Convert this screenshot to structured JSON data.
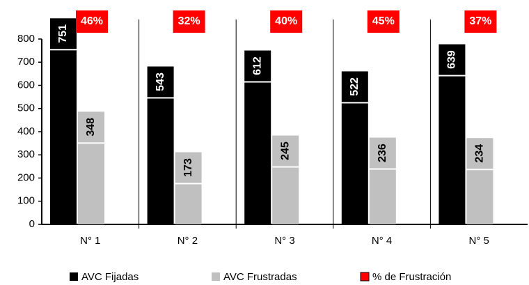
{
  "chart_data": {
    "type": "bar",
    "categories": [
      "N° 1",
      "N° 2",
      "N° 3",
      "N° 4",
      "N° 5"
    ],
    "series": [
      {
        "name": "AVC Fijadas",
        "color": "#000000",
        "values": [
          751,
          543,
          612,
          522,
          639
        ]
      },
      {
        "name": "AVC Frustradas",
        "color": "#c0c0c0",
        "values": [
          348,
          173,
          245,
          236,
          234
        ]
      },
      {
        "name": "% de Frustración",
        "color": "#ff0000",
        "values": [
          46,
          32,
          40,
          45,
          37
        ],
        "value_labels": [
          "46%",
          "32%",
          "40%",
          "45%",
          "37%"
        ]
      }
    ],
    "ylim": [
      0,
      800
    ],
    "yticks": [
      0,
      100,
      200,
      300,
      400,
      500,
      600,
      700,
      800
    ]
  }
}
